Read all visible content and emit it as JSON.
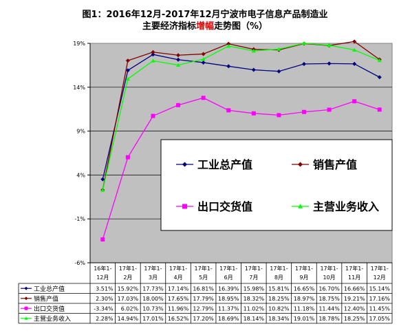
{
  "title": {
    "line1": "图1：2016年12月-2017年12月宁波市电子信息产品制造业",
    "line2_pre": "主要经济指标",
    "line2_hl": "增幅",
    "line2_post": "走势图（%）"
  },
  "chart_data": {
    "type": "line",
    "categories": [
      [
        "16年1-",
        "12月"
      ],
      [
        "17年1-",
        "2月"
      ],
      [
        "17年1-",
        "3月"
      ],
      [
        "17年1-",
        "4月"
      ],
      [
        "17年1-",
        "5月"
      ],
      [
        "17年1-",
        "6月"
      ],
      [
        "17年1-",
        "7月"
      ],
      [
        "17年1-",
        "8月"
      ],
      [
        "17年1-",
        "9月"
      ],
      [
        "17年1-",
        "10月"
      ],
      [
        "17年1-",
        "11月"
      ],
      [
        "17年1-",
        "12月"
      ]
    ],
    "yticks": [
      "19%",
      "14%",
      "9%",
      "4%",
      "-1%",
      "-6%"
    ],
    "ylim": [
      -6,
      19
    ],
    "grid": true,
    "legend_position": "center-right",
    "series": [
      {
        "name": "工业总产值",
        "color": "#000080",
        "marker": "diamond",
        "values": [
          3.51,
          15.92,
          17.73,
          17.14,
          16.81,
          16.39,
          15.98,
          15.81,
          16.65,
          16.7,
          16.66,
          15.14
        ],
        "labels": [
          "3.51%",
          "15.92%",
          "17.73%",
          "17.14%",
          "16.81%",
          "16.39%",
          "15.98%",
          "15.81%",
          "16.65%",
          "16.70%",
          "16.66%",
          "15.14%"
        ]
      },
      {
        "name": "销售产值",
        "color": "#800000",
        "marker": "diamond",
        "values": [
          2.3,
          17.03,
          18.0,
          17.65,
          17.79,
          18.95,
          18.32,
          18.25,
          18.97,
          18.75,
          19.21,
          17.16
        ],
        "labels": [
          "2.30%",
          "17.03%",
          "18.00%",
          "17.65%",
          "17.79%",
          "18.95%",
          "18.32%",
          "18.25%",
          "18.97%",
          "18.75%",
          "19.21%",
          "17.16%"
        ]
      },
      {
        "name": "出口交货值",
        "color": "#ff00ff",
        "marker": "square",
        "values": [
          -3.34,
          6.02,
          10.73,
          11.96,
          12.79,
          11.37,
          11.02,
          10.82,
          11.18,
          11.44,
          12.4,
          11.45
        ],
        "labels": [
          "-3.34%",
          "6.02%",
          "10.73%",
          "11.96%",
          "12.79%",
          "11.37%",
          "11.02%",
          "10.82%",
          "11.18%",
          "11.44%",
          "12.40%",
          "11.45%"
        ]
      },
      {
        "name": "主营业务收入",
        "color": "#00ff00",
        "marker": "triangle",
        "values": [
          2.28,
          14.94,
          17.01,
          16.52,
          17.2,
          18.69,
          18.14,
          18.34,
          19.01,
          18.78,
          18.25,
          17.05
        ],
        "labels": [
          "2.28%",
          "14.94%",
          "17.01%",
          "16.52%",
          "17.20%",
          "18.69%",
          "18.14%",
          "18.34%",
          "19.01%",
          "18.78%",
          "18.25%",
          "17.05%"
        ]
      }
    ]
  }
}
